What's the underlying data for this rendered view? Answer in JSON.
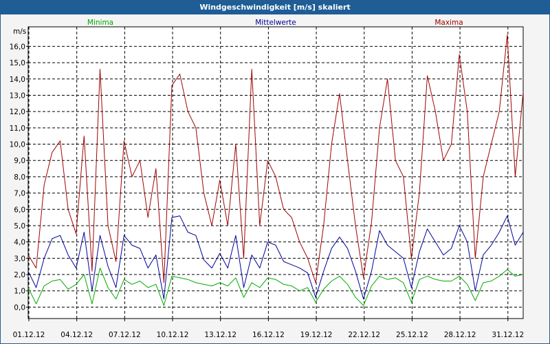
{
  "window": {
    "title": "Windgeschwindigkeit [m/s] skaliert"
  },
  "colors": {
    "min": "#00aa00",
    "avg": "#00009a",
    "max": "#a00000",
    "grid": "#000000",
    "title_bar": "#1e5d96"
  },
  "chart_data": {
    "type": "line",
    "title": "Windgeschwindigkeit [m/s] skaliert",
    "ylabel": "m/s",
    "xlabel": "",
    "ylim": [
      -0.7,
      17.2
    ],
    "xlim": [
      0,
      31
    ],
    "yticks": [
      0,
      1,
      2,
      3,
      4,
      5,
      6,
      7,
      8,
      9,
      10,
      11,
      12,
      13,
      14,
      15,
      16
    ],
    "ytick_labels": [
      "0,0",
      "1,0",
      "2,0",
      "3,0",
      "4,0",
      "5,0",
      "6,0",
      "7,0",
      "8,0",
      "9,0",
      "10,0",
      "11,0",
      "12,0",
      "13,0",
      "14,0",
      "15,0",
      "16,0"
    ],
    "xticks": [
      0,
      3,
      6,
      9,
      12,
      15,
      18,
      21,
      24,
      27,
      30
    ],
    "xtick_labels": [
      "01.12.12",
      "04.12.12",
      "07.12.12",
      "10.12.12",
      "13.12.12",
      "16.12.12",
      "19.12.12",
      "22.12.12",
      "25.12.12",
      "28.12.12",
      "31.12.12"
    ],
    "grid": true,
    "legend": [
      "Minima",
      "Mittelwerte",
      "Maxima"
    ],
    "legend_position": "top",
    "series": [
      {
        "name": "Minima",
        "color": "#00aa00",
        "x": [
          0,
          0.5,
          1,
          1.5,
          2,
          2.5,
          3,
          3.5,
          4,
          4.5,
          5,
          5.5,
          6,
          6.5,
          7,
          7.5,
          8,
          8.5,
          9,
          9.5,
          10,
          10.5,
          11,
          11.5,
          12,
          12.5,
          13,
          13.5,
          14,
          14.5,
          15,
          15.5,
          16,
          16.5,
          17,
          17.5,
          18,
          18.5,
          19,
          19.5,
          20,
          20.5,
          21,
          21.5,
          22,
          22.5,
          23,
          23.5,
          24,
          24.5,
          25,
          25.5,
          26,
          26.5,
          27,
          27.5,
          28,
          28.5,
          29,
          29.5,
          30,
          30.5,
          31
        ],
        "values": [
          1.2,
          0.2,
          1.3,
          1.6,
          1.7,
          1.1,
          1.4,
          2.0,
          0.2,
          2.4,
          1.2,
          0.5,
          1.7,
          1.4,
          1.6,
          1.2,
          1.4,
          0.1,
          1.9,
          1.8,
          1.7,
          1.5,
          1.4,
          1.3,
          1.5,
          1.3,
          1.8,
          0.6,
          1.5,
          1.2,
          1.8,
          1.7,
          1.4,
          1.3,
          1.0,
          1.2,
          0.3,
          1.1,
          1.6,
          1.9,
          1.4,
          0.6,
          0.1,
          1.3,
          1.9,
          1.7,
          1.8,
          1.5,
          0.3,
          1.7,
          1.9,
          1.7,
          1.6,
          1.6,
          1.9,
          1.4,
          0.4,
          1.5,
          1.6,
          1.9,
          2.3,
          1.9,
          2.0
        ]
      },
      {
        "name": "Mittelwerte",
        "color": "#00009a",
        "x": [
          0,
          0.5,
          1,
          1.5,
          2,
          2.5,
          3,
          3.5,
          4,
          4.5,
          5,
          5.5,
          6,
          6.5,
          7,
          7.5,
          8,
          8.5,
          9,
          9.5,
          10,
          10.5,
          11,
          11.5,
          12,
          12.5,
          13,
          13.5,
          14,
          14.5,
          15,
          15.5,
          16,
          16.5,
          17,
          17.5,
          18,
          18.5,
          19,
          19.5,
          20,
          20.5,
          21,
          21.5,
          22,
          22.5,
          23,
          23.5,
          24,
          24.5,
          25,
          25.5,
          26,
          26.5,
          27,
          27.5,
          28,
          28.5,
          29,
          29.5,
          30,
          30.5,
          31
        ],
        "values": [
          2.2,
          1.2,
          3.0,
          4.2,
          4.4,
          3.2,
          2.4,
          4.6,
          1.0,
          4.4,
          2.5,
          1.2,
          4.4,
          3.8,
          3.6,
          2.4,
          3.2,
          0.5,
          5.5,
          5.6,
          4.6,
          4.4,
          2.9,
          2.4,
          3.3,
          2.4,
          4.4,
          1.2,
          3.2,
          2.4,
          4.0,
          3.8,
          2.8,
          2.6,
          2.4,
          2.1,
          0.6,
          2.2,
          3.6,
          4.3,
          3.6,
          2.2,
          0.5,
          2.2,
          4.7,
          3.8,
          3.4,
          3.0,
          1.2,
          3.4,
          4.8,
          4.0,
          3.2,
          3.6,
          5.0,
          4.0,
          1.0,
          3.2,
          3.8,
          4.6,
          5.6,
          3.8,
          4.6
        ]
      },
      {
        "name": "Maxima",
        "color": "#a00000",
        "x": [
          0,
          0.5,
          1,
          1.5,
          2,
          2.5,
          3,
          3.5,
          4,
          4.5,
          5,
          5.5,
          6,
          6.5,
          7,
          7.5,
          8,
          8.5,
          9,
          9.5,
          10,
          10.5,
          11,
          11.5,
          12,
          12.5,
          13,
          13.5,
          14,
          14.5,
          15,
          15.5,
          16,
          16.5,
          17,
          17.5,
          18,
          18.5,
          19,
          19.5,
          20,
          20.5,
          21,
          21.5,
          22,
          22.5,
          23,
          23.5,
          24,
          24.5,
          25,
          25.5,
          26,
          26.5,
          27,
          27.5,
          28,
          28.5,
          29,
          29.5,
          30,
          30.5,
          31
        ],
        "values": [
          3.2,
          2.4,
          7.5,
          9.5,
          10.2,
          6.0,
          4.5,
          10.5,
          2.2,
          14.6,
          5.0,
          2.8,
          10.2,
          8.0,
          9.0,
          5.5,
          8.5,
          1.5,
          13.6,
          14.3,
          12.0,
          11.0,
          7.0,
          5.0,
          7.8,
          5.0,
          10.0,
          3.0,
          14.6,
          5.0,
          9.0,
          8.0,
          6.0,
          5.5,
          4.0,
          3.0,
          1.5,
          5.0,
          10.0,
          13.1,
          9.0,
          5.0,
          1.8,
          5.2,
          11.0,
          14.0,
          9.0,
          8.0,
          3.0,
          7.0,
          14.2,
          12.0,
          9.0,
          10.0,
          15.5,
          12.0,
          3.0,
          8.0,
          10.0,
          12.0,
          16.7,
          8.0,
          13.2
        ]
      }
    ]
  }
}
